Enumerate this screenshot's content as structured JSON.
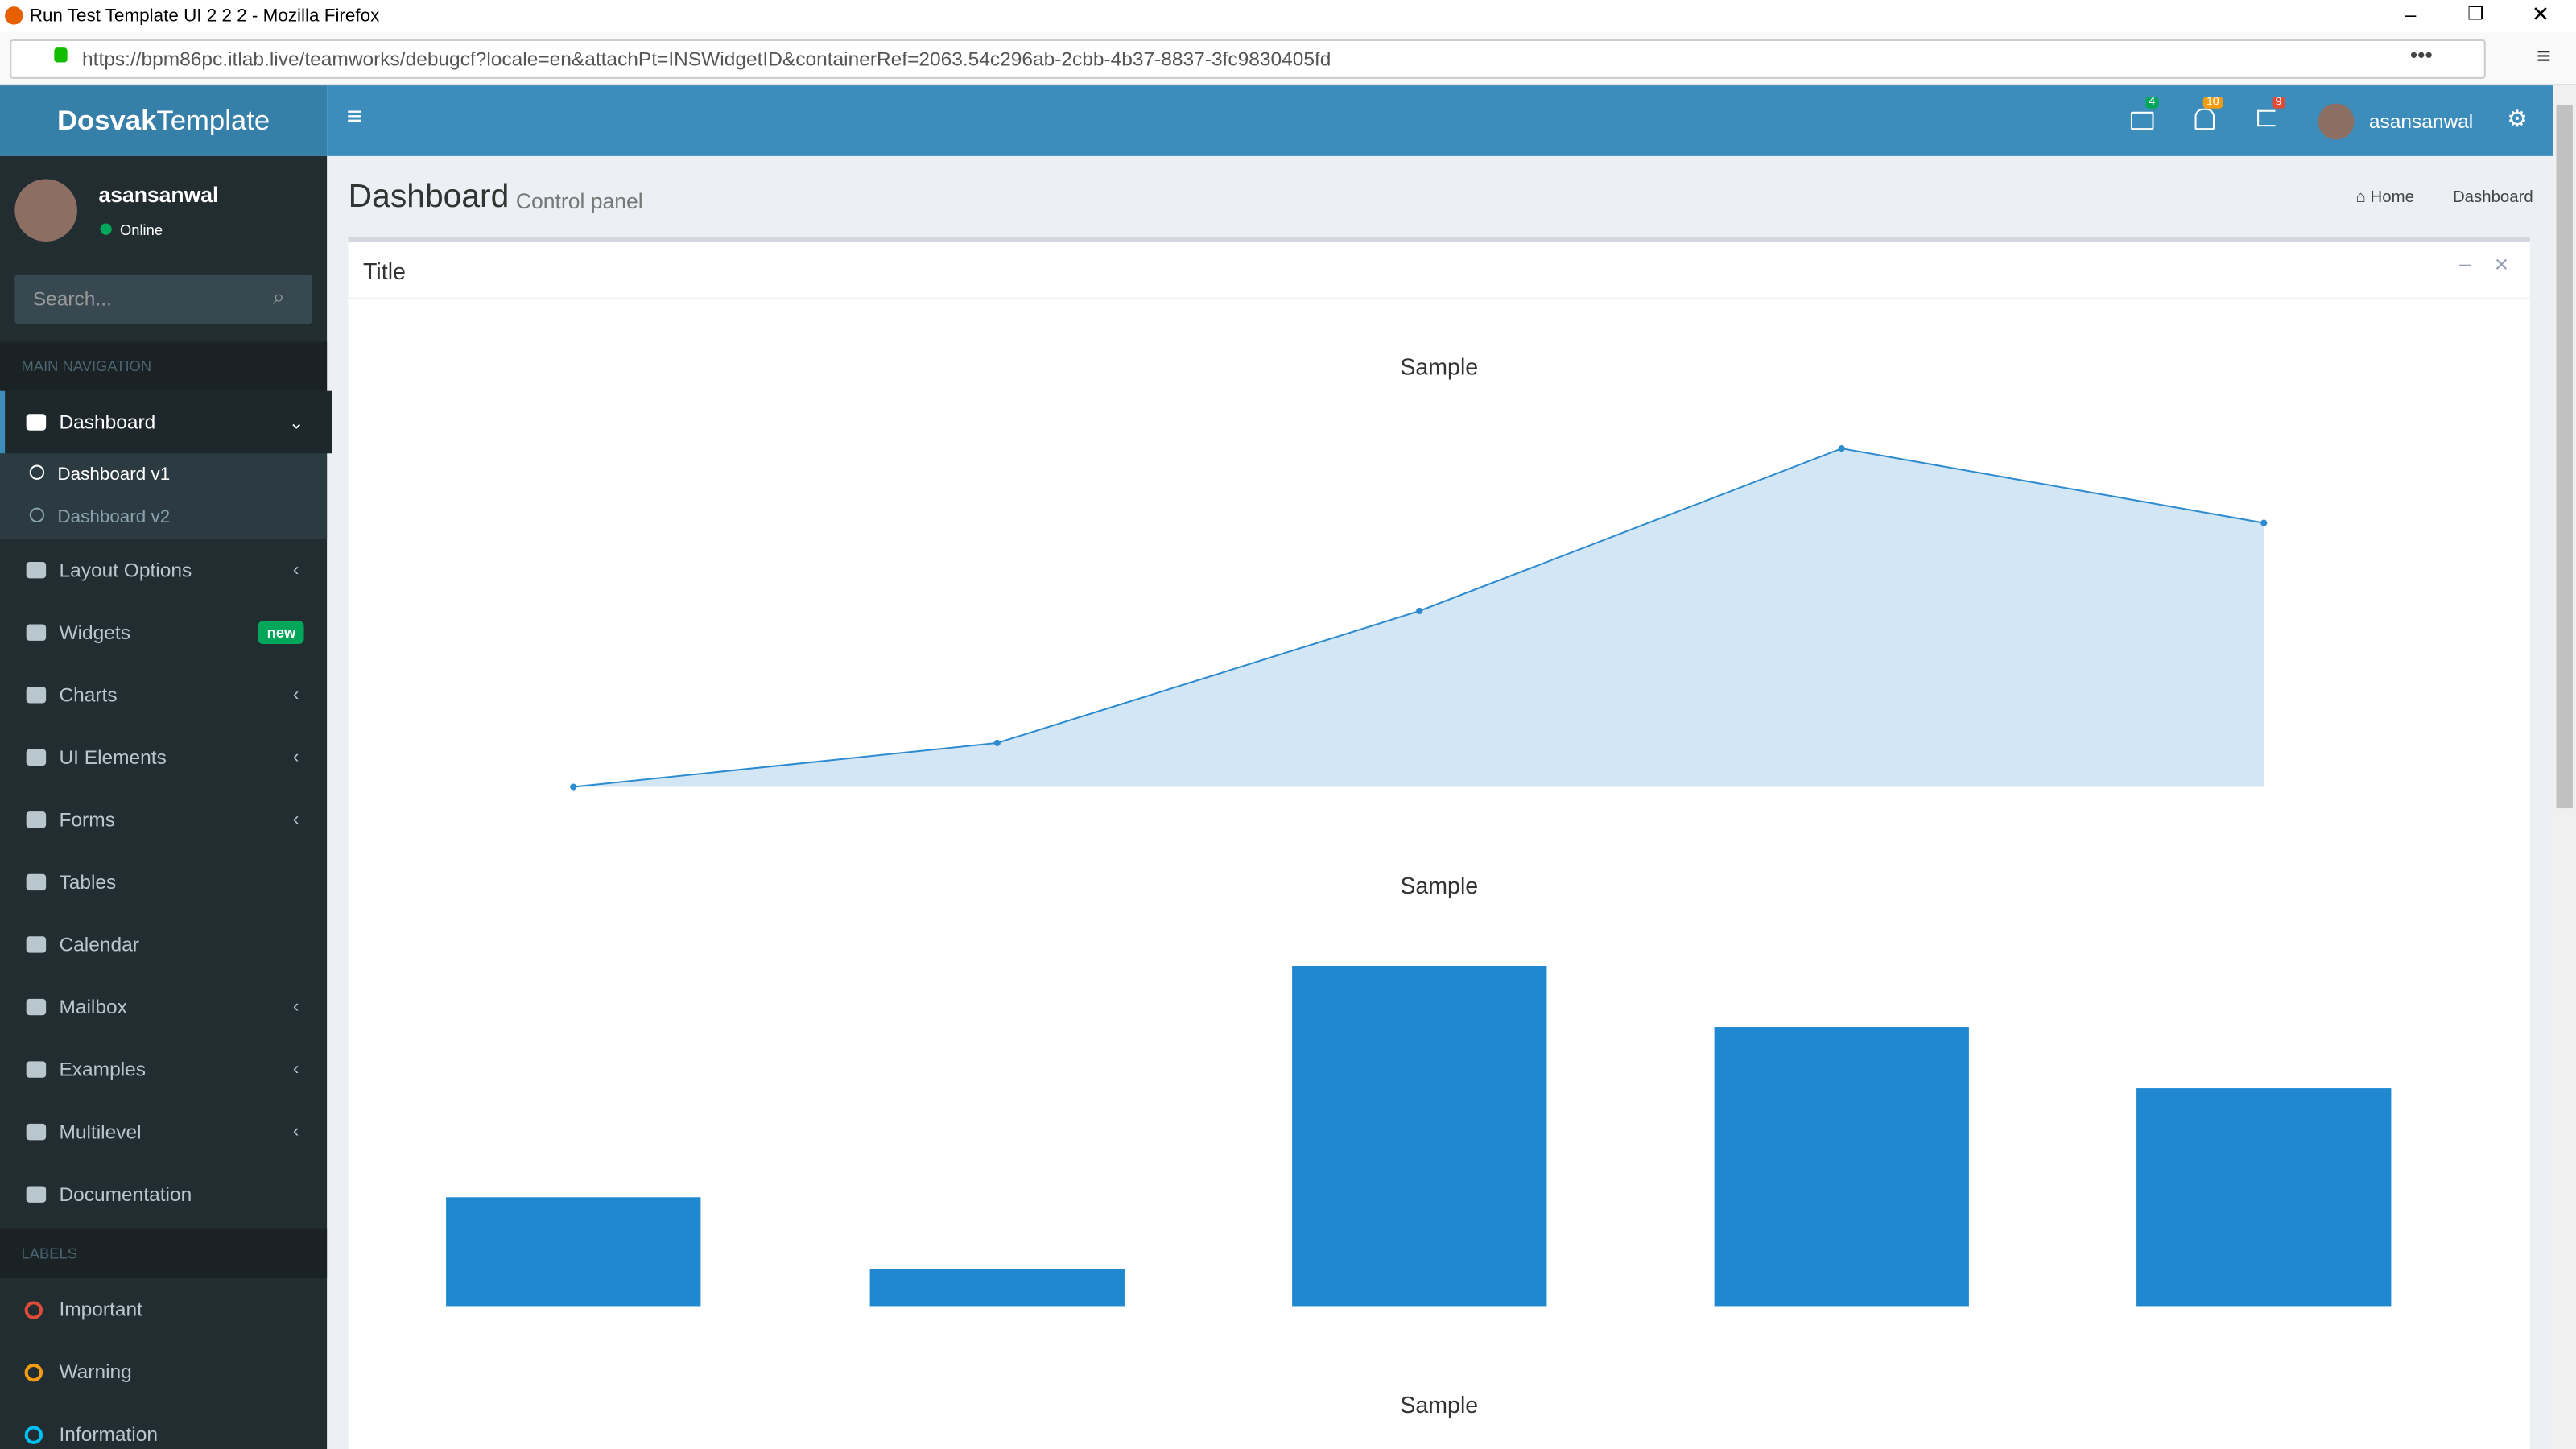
{
  "browser": {
    "tab_title": "Run Test Template UI 2 2 2 - Mozilla Firefox",
    "url": "https://bpm86pc.itlab.live/teamworks/debugcf?locale=en&attachPt=INSWidgetID&containerRef=2063.54c296ab-2cbb-4b37-8837-3fc9830405fd"
  },
  "header": {
    "brand_bold": "Dosvak",
    "brand_light": "Template",
    "badges": {
      "mail": "4",
      "bell": "10",
      "flag": "9"
    },
    "user": "asansanwal"
  },
  "sidebar": {
    "user": "asansanwal",
    "status": "Online",
    "search_placeholder": "Search...",
    "main_nav_heading": "MAIN NAVIGATION",
    "items": [
      {
        "label": "Dashboard",
        "children": [
          "Dashboard v1",
          "Dashboard v2"
        ]
      },
      {
        "label": "Layout Options"
      },
      {
        "label": "Widgets",
        "badge": "new"
      },
      {
        "label": "Charts"
      },
      {
        "label": "UI Elements"
      },
      {
        "label": "Forms"
      },
      {
        "label": "Tables"
      },
      {
        "label": "Calendar"
      },
      {
        "label": "Mailbox"
      },
      {
        "label": "Examples"
      },
      {
        "label": "Multilevel"
      },
      {
        "label": "Documentation"
      }
    ],
    "labels_heading": "LABELS",
    "labels": [
      {
        "label": "Important",
        "color": "#dd4b39"
      },
      {
        "label": "Warning",
        "color": "#f39c12"
      },
      {
        "label": "Information",
        "color": "#00c0ef"
      }
    ]
  },
  "content": {
    "title": "Dashboard",
    "subtitle": "Control panel",
    "breadcrumb": [
      "Home",
      "Dashboard"
    ],
    "card_title": "Title",
    "third_chart_title": "Sample"
  },
  "chart_data": [
    {
      "type": "line",
      "title": "Sample",
      "values": [
        0,
        13,
        52,
        100,
        78
      ],
      "ylim": [
        0,
        100
      ],
      "color": "#2e8bd0",
      "fill": "#d2e6f5"
    },
    {
      "type": "bar",
      "title": "Sample",
      "values": [
        32,
        11,
        100,
        82,
        64
      ],
      "ylim": [
        0,
        100
      ],
      "color": "#2088d0"
    }
  ]
}
